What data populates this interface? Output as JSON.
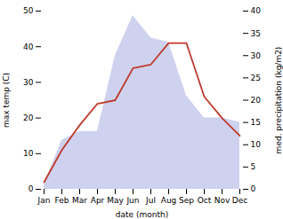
{
  "chart_data": {
    "type": "line",
    "categories": [
      "Jan",
      "Feb",
      "Mar",
      "Apr",
      "May",
      "Jun",
      "Jul",
      "Aug",
      "Sep",
      "Oct",
      "Nov",
      "Dec"
    ],
    "series": [
      {
        "type": "area",
        "axis": "y2",
        "color": "#c5caeb",
        "values": [
          1,
          11,
          13,
          13,
          30,
          39,
          34,
          33,
          21,
          16,
          16,
          15
        ]
      },
      {
        "type": "line",
        "color": "#c0392b",
        "values": [
          2,
          11,
          18,
          24,
          25,
          34,
          35,
          41,
          41,
          26,
          20,
          15
        ]
      }
    ],
    "xlabel": "date (month)",
    "ylabel": "max temp (C)",
    "y2label": "med. precipitation (kg/m2)",
    "ylim": [
      0,
      50
    ],
    "yticks": [
      0,
      10,
      20,
      30,
      40,
      50
    ],
    "y2lim": [
      0,
      40
    ],
    "y2ticks": [
      0,
      5,
      10,
      15,
      20,
      25,
      30,
      35,
      40
    ],
    "grid": false
  }
}
